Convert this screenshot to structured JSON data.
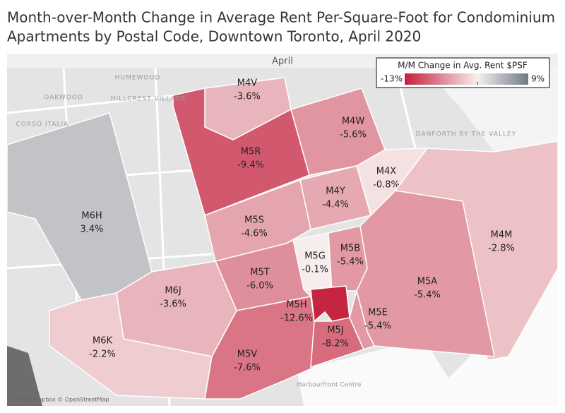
{
  "header": {
    "title": [
      "Month-over-Month Change in Average Rent Per-Square-Foot for Condominium",
      "Apartments by Postal Code, Downtown Toronto, April 2020"
    ],
    "panel": "April"
  },
  "legend": {
    "title": "M/M Change in Avg. Rent $PSF",
    "min": {
      "value": -13,
      "label": "-13%"
    },
    "max": {
      "value": 9,
      "label": "9%"
    },
    "center": 0,
    "colors": [
      "#c41f3b",
      "#f7efee",
      "#6b7a85"
    ]
  },
  "regions": [
    {
      "name": "M4V",
      "value": -3.6,
      "value_label": "-3.6%"
    },
    {
      "name": "M5R",
      "value": -9.4,
      "value_label": "-9.4%"
    },
    {
      "name": "M4W",
      "value": -5.6,
      "value_label": "-5.6%"
    },
    {
      "name": "M4X",
      "value": -0.8,
      "value_label": "-0.8%"
    },
    {
      "name": "M6H",
      "value": 3.4,
      "value_label": "3.4%"
    },
    {
      "name": "M5S",
      "value": -4.6,
      "value_label": "-4.6%"
    },
    {
      "name": "M4Y",
      "value": -4.4,
      "value_label": "-4.4%"
    },
    {
      "name": "M5G",
      "value": -0.1,
      "value_label": "-0.1%"
    },
    {
      "name": "M5B",
      "value": -5.4,
      "value_label": "-5.4%"
    },
    {
      "name": "M5T",
      "value": -6.0,
      "value_label": "-6.0%"
    },
    {
      "name": "M4M",
      "value": -2.8,
      "value_label": "-2.8%"
    },
    {
      "name": "M5A",
      "value": -5.4,
      "value_label": "-5.4%"
    },
    {
      "name": "M6J",
      "value": -3.6,
      "value_label": "-3.6%"
    },
    {
      "name": "M6K",
      "value": -2.2,
      "value_label": "-2.2%"
    },
    {
      "name": "M5V",
      "value": -7.6,
      "value_label": "-7.6%"
    },
    {
      "name": "M5H",
      "value": -12.6,
      "value_label": "-12.6%"
    },
    {
      "name": "M5J",
      "value": -8.2,
      "value_label": "-8.2%"
    },
    {
      "name": "M5E",
      "value": -5.4,
      "value_label": "-5.4%"
    }
  ],
  "places": [
    "HUMEWOOD",
    "OAKWOOD",
    "HILLCREST VILLAGE",
    "CORSO ITALIA",
    "DANFORTH BY THE VALLEY",
    "Harbourfront Centre"
  ],
  "attribution": "© 2020 Mapbox © OpenStreetMap"
}
